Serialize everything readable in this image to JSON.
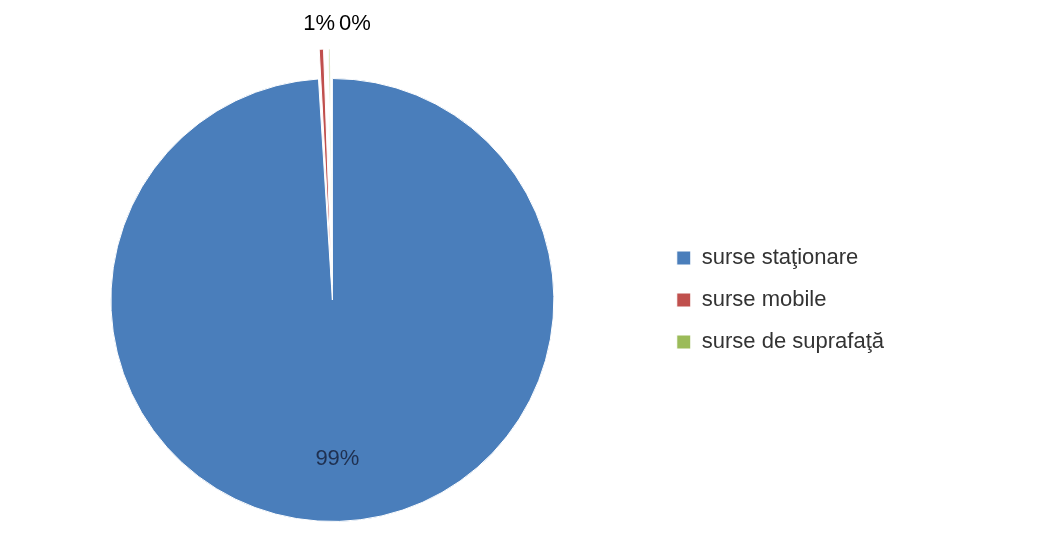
{
  "chart_data": {
    "type": "pie",
    "categories": [
      "surse staţionare",
      "surse mobile",
      "surse de suprafaţă"
    ],
    "values": [
      99,
      0.6,
      0.4
    ],
    "value_labels": [
      "99%",
      "1%",
      "0%"
    ],
    "colors": [
      "#4a7ebb",
      "#c0504d",
      "#9bbb59"
    ],
    "legend": "right"
  }
}
